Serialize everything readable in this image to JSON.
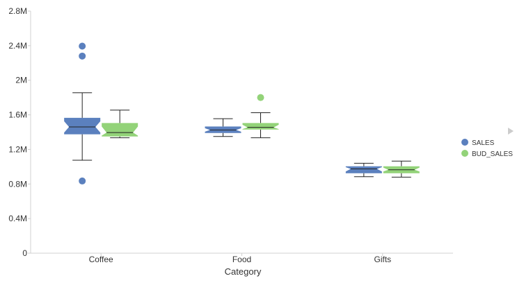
{
  "chart_data": {
    "type": "boxplot",
    "notched": true,
    "xlabel": "Category",
    "ylabel": "",
    "ylim": [
      0,
      2800000
    ],
    "yticks": [
      0,
      400000,
      800000,
      1200000,
      1600000,
      2000000,
      2400000,
      2800000
    ],
    "ytick_labels": [
      "0",
      "0.4M",
      "0.8M",
      "1.2M",
      "1.6M",
      "2M",
      "2.4M",
      "2.8M"
    ],
    "categories": [
      "Coffee",
      "Food",
      "Gifts"
    ],
    "grid": false,
    "legend_position": "right",
    "series": [
      {
        "name": "SALES",
        "color": "#5b80be",
        "boxes": [
          {
            "whisker_low": 1075000,
            "q1": 1375000,
            "median": 1460000,
            "q3": 1565000,
            "whisker_high": 1855000,
            "notch_low": 1395000,
            "notch_high": 1525000,
            "outliers": [
              2395000,
              2280000,
              835000
            ]
          },
          {
            "whisker_low": 1350000,
            "q1": 1390000,
            "median": 1425000,
            "q3": 1465000,
            "whisker_high": 1555000,
            "notch_low": 1405000,
            "notch_high": 1445000,
            "outliers": []
          },
          {
            "whisker_low": 885000,
            "q1": 925000,
            "median": 975000,
            "q3": 1005000,
            "whisker_high": 1040000,
            "notch_low": 945000,
            "notch_high": 995000,
            "outliers": []
          }
        ]
      },
      {
        "name": "BUD_SALES",
        "color": "#93d379",
        "boxes": [
          {
            "whisker_low": 1335000,
            "q1": 1350000,
            "median": 1395000,
            "q3": 1505000,
            "whisker_high": 1655000,
            "notch_low": 1360000,
            "notch_high": 1465000,
            "outliers": []
          },
          {
            "whisker_low": 1335000,
            "q1": 1430000,
            "median": 1455000,
            "q3": 1505000,
            "whisker_high": 1625000,
            "notch_low": 1435000,
            "notch_high": 1485000,
            "outliers": [
              1800000
            ]
          },
          {
            "whisker_low": 880000,
            "q1": 925000,
            "median": 965000,
            "q3": 1005000,
            "whisker_high": 1065000,
            "notch_low": 945000,
            "notch_high": 990000,
            "outliers": []
          }
        ]
      }
    ]
  }
}
